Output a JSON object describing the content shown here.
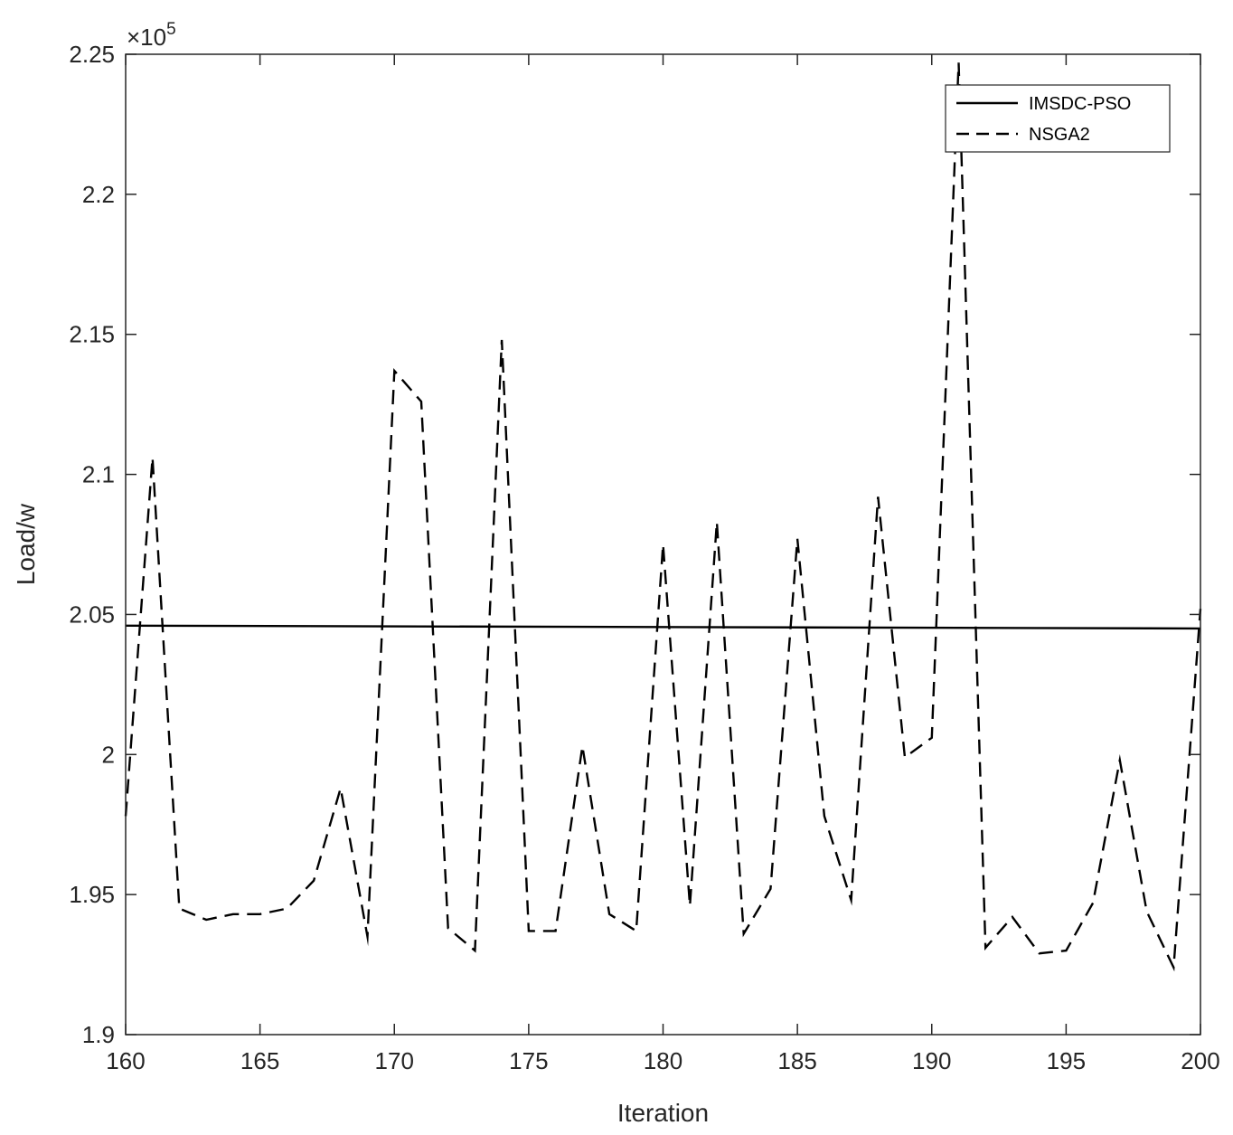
{
  "chart_data": {
    "type": "line",
    "title": "",
    "xlabel": "Iteration",
    "ylabel": "Load/w",
    "xlim": [
      160,
      200
    ],
    "ylim": [
      190000,
      225000
    ],
    "y_exponent_label": {
      "base": "×10",
      "power": "5"
    },
    "x_ticks": [
      160,
      165,
      170,
      175,
      180,
      185,
      190,
      195,
      200
    ],
    "y_ticks": [
      190000,
      195000,
      200000,
      205000,
      210000,
      215000,
      220000,
      225000
    ],
    "x_tick_labels": [
      "160",
      "165",
      "170",
      "175",
      "180",
      "185",
      "190",
      "195",
      "200"
    ],
    "y_tick_labels": [
      "1.9",
      "1.95",
      "2",
      "2.05",
      "2.1",
      "2.15",
      "2.2",
      "2.25"
    ],
    "grid": false,
    "legend_position": "top-right",
    "series": [
      {
        "name": "IMSDC-PSO",
        "style": "solid",
        "color": "#000000",
        "x": [
          160,
          200
        ],
        "y": [
          204600,
          204500
        ]
      },
      {
        "name": "NSGA2",
        "style": "dashed",
        "color": "#000000",
        "x": [
          160,
          161,
          162,
          163,
          164,
          165,
          166,
          167,
          168,
          169,
          170,
          171,
          172,
          173,
          174,
          175,
          176,
          177,
          178,
          179,
          180,
          181,
          182,
          183,
          184,
          185,
          186,
          187,
          188,
          189,
          190,
          191,
          192,
          193,
          194,
          195,
          196,
          197,
          198,
          199,
          200
        ],
        "y": [
          197800,
          210600,
          194500,
          194100,
          194300,
          194300,
          194500,
          195500,
          198800,
          193500,
          213700,
          212600,
          193800,
          193000,
          214800,
          193700,
          193700,
          200300,
          194300,
          193700,
          207500,
          194600,
          208300,
          193600,
          195200,
          207700,
          197800,
          194800,
          209200,
          199900,
          200600,
          224700,
          193100,
          194200,
          192900,
          193000,
          194700,
          199800,
          194400,
          192400,
          205200
        ]
      }
    ]
  }
}
